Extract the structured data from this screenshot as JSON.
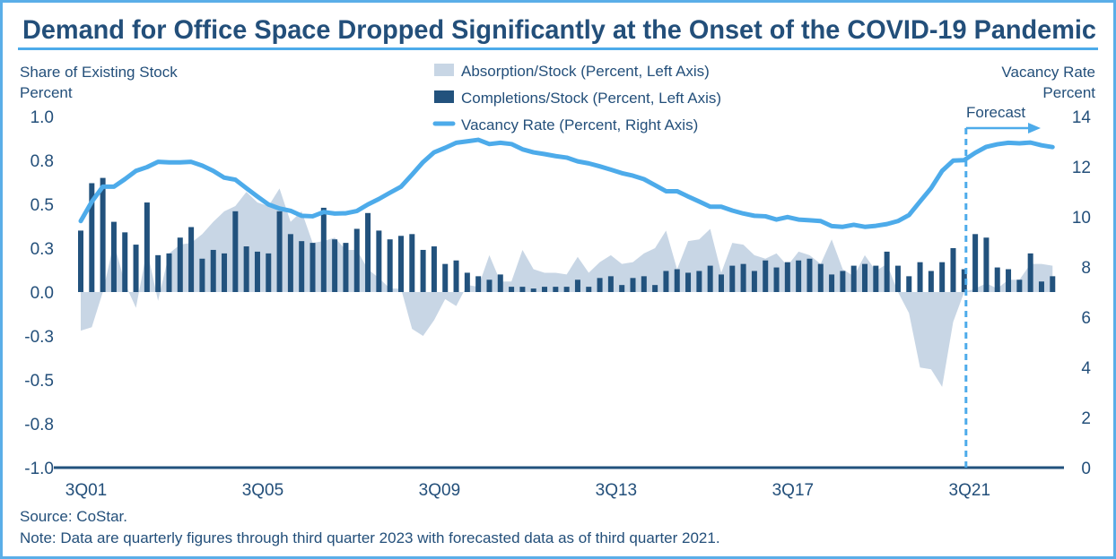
{
  "title": "Demand for Office Space Dropped Significantly at the Onset of the COVID-19 Pandemic",
  "source": "Source: CoStar.",
  "note": "Note: Data are quarterly figures through third quarter 2023 with forecasted data as of third quarter 2021.",
  "colors": {
    "frame": "#5aaee8",
    "text": "#234f7a",
    "absorption": "#c8d6e5",
    "completions": "#22527d",
    "vacancy": "#4dabea"
  },
  "chart_data": {
    "type": "bar+area+line",
    "title": "Demand for Office Space Dropped Significantly at the Onset of the COVID-19 Pandemic",
    "y_left_label": [
      "Share of Existing Stock",
      "Percent"
    ],
    "y_right_label": [
      "Vacancy Rate",
      "Percent"
    ],
    "ylim_left": [
      -1.0,
      1.0
    ],
    "ylim_right": [
      0,
      14
    ],
    "y_left_ticks": [
      {
        "value": 1.0,
        "label": "1.0"
      },
      {
        "value": 0.75,
        "label": "0.8"
      },
      {
        "value": 0.5,
        "label": "0.5"
      },
      {
        "value": 0.25,
        "label": "0.3"
      },
      {
        "value": 0.0,
        "label": "0.0"
      },
      {
        "value": -0.25,
        "label": "-0.3"
      },
      {
        "value": -0.5,
        "label": "-0.5"
      },
      {
        "value": -0.75,
        "label": "-0.8"
      },
      {
        "value": -1.0,
        "label": "-1.0"
      }
    ],
    "y_right_ticks": [
      "0",
      "2",
      "4",
      "6",
      "8",
      "10",
      "12",
      "14"
    ],
    "x_range": [
      "3Q01",
      "3Q23"
    ],
    "x_ticks": [
      {
        "quarter": "3Q01",
        "label": "3Q01"
      },
      {
        "quarter": "3Q05",
        "label": "3Q05"
      },
      {
        "quarter": "3Q09",
        "label": "3Q09"
      },
      {
        "quarter": "3Q13",
        "label": "3Q13"
      },
      {
        "quarter": "3Q17",
        "label": "3Q17"
      },
      {
        "quarter": "3Q21",
        "label": "3Q21"
      }
    ],
    "forecast": {
      "label": "Forecast",
      "start": "3Q21"
    },
    "legend_position": "top-center",
    "grid": false,
    "series": [
      {
        "name": "Absorption/Stock (Percent, Left Axis)",
        "type": "area",
        "axis": "left",
        "values": [
          -0.22,
          -0.2,
          0.0,
          0.28,
          0.05,
          -0.09,
          0.24,
          -0.05,
          0.22,
          0.27,
          0.28,
          0.33,
          0.4,
          0.46,
          0.49,
          0.57,
          0.51,
          0.49,
          0.59,
          0.4,
          0.46,
          0.28,
          0.29,
          0.31,
          0.24,
          0.24,
          0.13,
          0.08,
          0.02,
          0.02,
          -0.21,
          -0.25,
          -0.16,
          -0.04,
          -0.08,
          0.04,
          0.03,
          0.21,
          0.06,
          0.06,
          0.24,
          0.13,
          0.11,
          0.11,
          0.1,
          0.2,
          0.11,
          0.17,
          0.21,
          0.16,
          0.17,
          0.22,
          0.25,
          0.35,
          0.13,
          0.29,
          0.3,
          0.36,
          0.11,
          0.28,
          0.27,
          0.21,
          0.19,
          0.22,
          0.15,
          0.23,
          0.21,
          0.16,
          0.3,
          0.13,
          0.09,
          0.21,
          0.12,
          0.16,
          0.0,
          -0.12,
          -0.43,
          -0.44,
          -0.54,
          -0.17,
          0.0,
          0.02,
          0.05,
          0.02,
          0.07,
          0.07,
          0.16,
          0.16,
          0.15
        ]
      },
      {
        "name": "Completions/Stock (Percent, Left Axis)",
        "type": "bar",
        "axis": "left",
        "values": [
          0.35,
          0.62,
          0.65,
          0.4,
          0.34,
          0.27,
          0.51,
          0.21,
          0.22,
          0.31,
          0.37,
          0.19,
          0.24,
          0.22,
          0.46,
          0.26,
          0.23,
          0.22,
          0.46,
          0.33,
          0.29,
          0.28,
          0.48,
          0.3,
          0.28,
          0.36,
          0.45,
          0.35,
          0.3,
          0.32,
          0.33,
          0.24,
          0.26,
          0.16,
          0.18,
          0.11,
          0.09,
          0.07,
          0.1,
          0.03,
          0.03,
          0.02,
          0.03,
          0.03,
          0.03,
          0.07,
          0.03,
          0.08,
          0.09,
          0.04,
          0.08,
          0.09,
          0.04,
          0.12,
          0.13,
          0.11,
          0.12,
          0.15,
          0.1,
          0.15,
          0.16,
          0.12,
          0.18,
          0.14,
          0.17,
          0.18,
          0.19,
          0.16,
          0.1,
          0.12,
          0.15,
          0.16,
          0.15,
          0.23,
          0.15,
          0.09,
          0.17,
          0.12,
          0.17,
          0.25,
          0.13,
          0.33,
          0.31,
          0.14,
          0.13,
          0.07,
          0.22,
          0.06,
          0.09
        ]
      },
      {
        "name": "Vacancy Rate (Percent, Right Axis)",
        "type": "line",
        "axis": "right",
        "values": [
          9.83,
          10.6,
          11.2,
          11.2,
          11.5,
          11.83,
          11.98,
          12.19,
          12.17,
          12.17,
          12.19,
          12.04,
          11.83,
          11.56,
          11.48,
          11.14,
          10.81,
          10.49,
          10.33,
          10.24,
          10.04,
          10.02,
          10.19,
          10.13,
          10.14,
          10.23,
          10.49,
          10.71,
          10.96,
          11.2,
          11.68,
          12.18,
          12.57,
          12.75,
          12.95,
          13.01,
          13.07,
          12.9,
          12.95,
          12.9,
          12.69,
          12.57,
          12.5,
          12.42,
          12.36,
          12.21,
          12.13,
          12.01,
          11.88,
          11.74,
          11.64,
          11.5,
          11.26,
          11.02,
          11.02,
          10.81,
          10.61,
          10.4,
          10.4,
          10.25,
          10.13,
          10.04,
          10.02,
          9.89,
          9.99,
          9.89,
          9.86,
          9.83,
          9.63,
          9.6,
          9.68,
          9.6,
          9.64,
          9.71,
          9.83,
          10.07,
          10.61,
          11.14,
          11.83,
          12.24,
          12.26,
          12.55,
          12.79,
          12.89,
          12.95,
          12.93,
          12.96,
          12.85,
          12.78
        ]
      }
    ]
  }
}
